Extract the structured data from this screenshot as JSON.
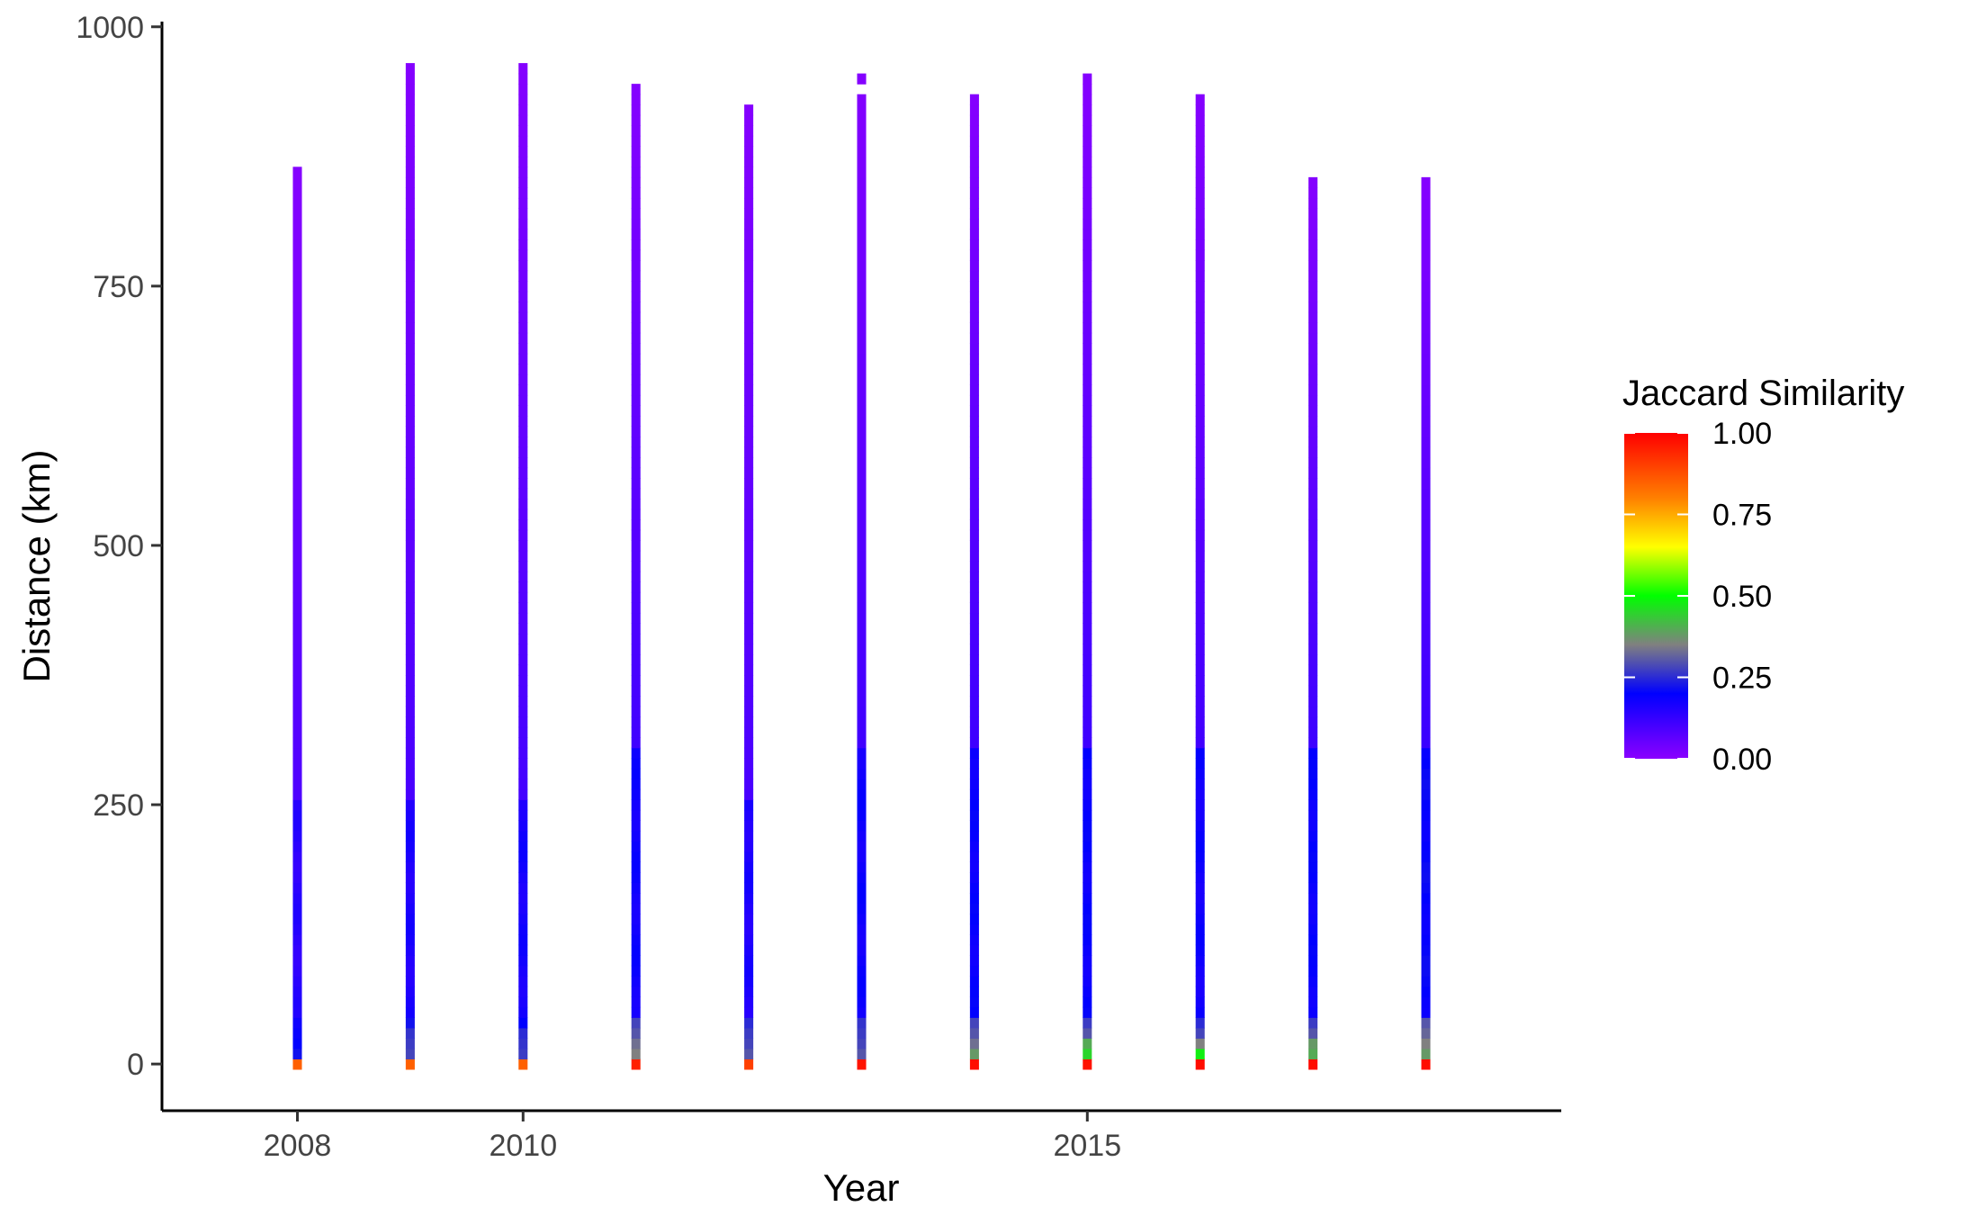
{
  "chart_data": {
    "type": "heatmap",
    "title": "",
    "xlabel": "Year",
    "ylabel": "Distance (km)",
    "xlim": [
      2006.8,
      2019.2
    ],
    "ylim": [
      -45,
      1005
    ],
    "x_ticks": [
      2008,
      2010,
      2015
    ],
    "x_tick_labels": [
      "2008",
      "2010",
      "2015"
    ],
    "y_ticks": [
      0,
      250,
      500,
      750,
      1000
    ],
    "y_tick_labels": [
      "0",
      "250",
      "500",
      "750",
      "1000"
    ],
    "tile_height_km": 10,
    "tile_width_years": 0.08,
    "grid": false,
    "legend": {
      "title": "Jaccard Similarity",
      "position": "right",
      "breaks": [
        0.0,
        0.25,
        0.5,
        0.75,
        1.0
      ],
      "labels": [
        "0.00",
        "0.25",
        "0.50",
        "0.75",
        "1.00"
      ]
    },
    "color_scale": [
      {
        "value": 0.0,
        "color": "#8B00FF"
      },
      {
        "value": 0.2,
        "color": "#0000FF"
      },
      {
        "value": 0.35,
        "color": "#808080"
      },
      {
        "value": 0.5,
        "color": "#00FF00"
      },
      {
        "value": 0.65,
        "color": "#FFFF00"
      },
      {
        "value": 0.8,
        "color": "#FF8000"
      },
      {
        "value": 1.0,
        "color": "#FF0000"
      }
    ],
    "series": [
      {
        "year": 2008,
        "max_distance": 860,
        "gaps": [],
        "near_values": [
          0.85,
          0.22,
          0.2,
          0.19,
          0.18
        ],
        "mid_value": 0.14,
        "mid_to": 250
      },
      {
        "year": 2009,
        "max_distance": 960,
        "gaps": [],
        "near_values": [
          0.85,
          0.28,
          0.27,
          0.26,
          0.22
        ],
        "mid_value": 0.16,
        "mid_to": 250
      },
      {
        "year": 2010,
        "max_distance": 960,
        "gaps": [],
        "near_values": [
          0.85,
          0.27,
          0.26,
          0.25,
          0.2
        ],
        "mid_value": 0.17,
        "mid_to": 250
      },
      {
        "year": 2011,
        "max_distance": 940,
        "gaps": [],
        "near_values": [
          0.95,
          0.35,
          0.33,
          0.3,
          0.28
        ],
        "mid_value": 0.18,
        "mid_to": 300
      },
      {
        "year": 2012,
        "max_distance": 920,
        "gaps": [],
        "near_values": [
          0.9,
          0.3,
          0.28,
          0.27,
          0.25
        ],
        "mid_value": 0.16,
        "mid_to": 250
      },
      {
        "year": 2013,
        "max_distance": 950,
        "gaps": [
          940
        ],
        "near_values": [
          0.97,
          0.3,
          0.28,
          0.27,
          0.26
        ],
        "mid_value": 0.18,
        "mid_to": 300
      },
      {
        "year": 2014,
        "max_distance": 930,
        "gaps": [],
        "near_values": [
          0.98,
          0.38,
          0.33,
          0.3,
          0.28
        ],
        "mid_value": 0.19,
        "mid_to": 300
      },
      {
        "year": 2015,
        "max_distance": 950,
        "gaps": [],
        "near_values": [
          0.97,
          0.45,
          0.4,
          0.3,
          0.27
        ],
        "mid_value": 0.19,
        "mid_to": 300
      },
      {
        "year": 2016,
        "max_distance": 930,
        "gaps": [],
        "near_values": [
          0.98,
          0.48,
          0.35,
          0.28,
          0.25
        ],
        "mid_value": 0.18,
        "mid_to": 300
      },
      {
        "year": 2017,
        "max_distance": 850,
        "gaps": [],
        "near_values": [
          0.98,
          0.4,
          0.38,
          0.3,
          0.27
        ],
        "mid_value": 0.19,
        "mid_to": 300
      },
      {
        "year": 2018,
        "max_distance": 850,
        "gaps": [],
        "near_values": [
          0.98,
          0.38,
          0.35,
          0.32,
          0.3
        ],
        "mid_value": 0.2,
        "mid_to": 300
      }
    ]
  }
}
